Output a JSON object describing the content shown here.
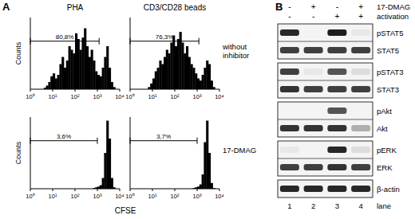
{
  "chart_data": [
    {
      "type": "histogram",
      "ylabel": "Counts",
      "log": "x",
      "tick_labels": "x",
      "color": "#000000",
      "bins": [
        1,
        1.26,
        1.58,
        2,
        2.51,
        3.16,
        3.98,
        5.01,
        6.31,
        7.94,
        10,
        12.6,
        15.8,
        20,
        25.1,
        31.6,
        39.8,
        50.1,
        63.1,
        79.4,
        100,
        126,
        158,
        200,
        251,
        316,
        398,
        501,
        631,
        794,
        1000,
        1259,
        1585,
        1995,
        2512,
        3162,
        3981,
        5012,
        6310,
        7943,
        10000
      ],
      "values": [
        0,
        0,
        0,
        0,
        0,
        0,
        2,
        5,
        10,
        18,
        22,
        15,
        20,
        35,
        45,
        30,
        40,
        60,
        55,
        50,
        78,
        70,
        55,
        72,
        85,
        60,
        45,
        55,
        40,
        25,
        20,
        18,
        30,
        45,
        60,
        30,
        10,
        3,
        0,
        0
      ],
      "xlim": [
        1,
        10000
      ],
      "ylim": [
        0,
        100
      ],
      "xticks": [
        {
          "value": 1,
          "label": "10⁰"
        },
        {
          "value": 10,
          "label": "10¹"
        },
        {
          "value": 100,
          "label": "10²"
        },
        {
          "value": 1000,
          "label": "10³"
        },
        {
          "value": 10000,
          "label": "10⁴"
        }
      ],
      "gate": {
        "label": "80,8%",
        "range": [
          1,
          1200
        ]
      }
    },
    {
      "type": "histogram",
      "log": "x",
      "tick_labels": "x",
      "color": "#000000",
      "bins": [
        1,
        1.26,
        1.58,
        2,
        2.51,
        3.16,
        3.98,
        5.01,
        6.31,
        7.94,
        10,
        12.6,
        15.8,
        20,
        25.1,
        31.6,
        39.8,
        50.1,
        63.1,
        79.4,
        100,
        126,
        158,
        200,
        251,
        316,
        398,
        501,
        631,
        794,
        1000,
        1259,
        1585,
        1995,
        2512,
        3162,
        3981,
        5012,
        6310,
        7943,
        10000
      ],
      "values": [
        0,
        0,
        0,
        0,
        0,
        0,
        0,
        0,
        3,
        8,
        15,
        25,
        30,
        40,
        35,
        45,
        55,
        50,
        65,
        75,
        60,
        70,
        80,
        65,
        50,
        60,
        45,
        35,
        30,
        22,
        15,
        12,
        20,
        30,
        40,
        35,
        12,
        3,
        0,
        0
      ],
      "xlim": [
        1,
        10000
      ],
      "ylim": [
        0,
        100
      ],
      "xticks": [
        {
          "value": 1,
          "label": "10⁰"
        },
        {
          "value": 10,
          "label": "10¹"
        },
        {
          "value": 100,
          "label": "10²"
        },
        {
          "value": 1000,
          "label": "10³"
        },
        {
          "value": 10000,
          "label": "10⁴"
        }
      ],
      "gate": {
        "label": "76,3%",
        "range": [
          1,
          1200
        ]
      }
    },
    {
      "type": "histogram",
      "ylabel": "Counts",
      "log": "x",
      "tick_labels": "x",
      "color": "#000000",
      "bins": [
        1,
        1.26,
        1.58,
        2,
        2.51,
        3.16,
        3.98,
        5.01,
        6.31,
        7.94,
        10,
        12.6,
        15.8,
        20,
        25.1,
        31.6,
        39.8,
        50.1,
        63.1,
        79.4,
        100,
        126,
        158,
        200,
        251,
        316,
        398,
        501,
        631,
        794,
        1000,
        1259,
        1585,
        1995,
        2512,
        3162,
        3981,
        5012,
        6310,
        7943,
        10000
      ],
      "values": [
        0,
        0,
        0,
        0,
        0,
        0,
        0,
        0,
        0,
        0,
        0,
        0,
        0,
        0,
        0,
        0,
        0,
        0,
        0,
        0,
        0,
        0,
        0,
        0,
        0,
        0,
        0,
        0,
        1,
        2,
        3,
        5,
        15,
        50,
        95,
        70,
        15,
        2,
        0,
        0
      ],
      "xlim": [
        1,
        10000
      ],
      "ylim": [
        0,
        100
      ],
      "xticks": [
        {
          "value": 1,
          "label": "10⁰"
        },
        {
          "value": 10,
          "label": "10¹"
        },
        {
          "value": 100,
          "label": "10²"
        },
        {
          "value": 1000,
          "label": "10³"
        },
        {
          "value": 10000,
          "label": "10⁴"
        }
      ],
      "gate": {
        "label": "3,6%",
        "range": [
          1,
          1000
        ]
      }
    },
    {
      "type": "histogram",
      "log": "x",
      "tick_labels": "x",
      "color": "#000000",
      "bins": [
        1,
        1.26,
        1.58,
        2,
        2.51,
        3.16,
        3.98,
        5.01,
        6.31,
        7.94,
        10,
        12.6,
        15.8,
        20,
        25.1,
        31.6,
        39.8,
        50.1,
        63.1,
        79.4,
        100,
        126,
        158,
        200,
        251,
        316,
        398,
        501,
        631,
        794,
        1000,
        1259,
        1585,
        1995,
        2512,
        3162,
        3981,
        5012,
        6310,
        7943,
        10000
      ],
      "values": [
        0,
        0,
        0,
        0,
        0,
        0,
        0,
        0,
        0,
        0,
        0,
        0,
        0,
        0,
        0,
        0,
        0,
        0,
        0,
        0,
        0,
        0,
        0,
        0,
        0,
        0,
        0,
        0,
        1,
        2,
        3,
        6,
        20,
        65,
        95,
        50,
        8,
        1,
        0,
        0
      ],
      "xlim": [
        1,
        10000
      ],
      "ylim": [
        0,
        100
      ],
      "xticks": [
        {
          "value": 1,
          "label": "10⁰"
        },
        {
          "value": 10,
          "label": "10¹"
        },
        {
          "value": 100,
          "label": "10²"
        },
        {
          "value": 1000,
          "label": "10³"
        },
        {
          "value": 10000,
          "label": "10⁴"
        }
      ],
      "gate": {
        "label": "3,7%",
        "range": [
          1,
          1000
        ]
      }
    }
  ],
  "panel_a": {
    "label": "A",
    "columns": [
      "PHA",
      "CD3/CD28 beads"
    ],
    "rows": [
      "without inhibitor",
      "17-DMAG"
    ],
    "xlabel": "CFSE"
  },
  "panel_b": {
    "label": "B",
    "conditions": [
      {
        "label": "17-DMAG",
        "signs": [
          "-",
          "+",
          "-",
          "+"
        ]
      },
      {
        "label": "activation",
        "signs": [
          "-",
          "-",
          "+",
          "+"
        ]
      }
    ],
    "groups": [
      {
        "blots": [
          {
            "label": "pSTAT5",
            "bands": [
              0.9,
              0,
              0.95,
              0.05
            ]
          },
          {
            "label": "STAT5",
            "bands": [
              0.8,
              0.8,
              0.8,
              0.8
            ]
          }
        ]
      },
      {
        "blots": [
          {
            "label": "pSTAT3",
            "bands": [
              0.8,
              0.05,
              0.7,
              0.1
            ]
          },
          {
            "label": "STAT3",
            "bands": [
              0.85,
              0.8,
              0.8,
              0.8
            ]
          }
        ]
      },
      {
        "blots": [
          {
            "label": "pAkt",
            "bands": [
              0,
              0,
              0.7,
              0
            ]
          },
          {
            "label": "Akt",
            "bands": [
              0.85,
              0.85,
              0.85,
              0.3
            ]
          }
        ]
      },
      {
        "blots": [
          {
            "label": "pERK",
            "bands": [
              0.05,
              0,
              0.9,
              0.1
            ]
          },
          {
            "label": "ERK",
            "bands": [
              0.8,
              0.8,
              0.85,
              0.8
            ]
          }
        ]
      },
      {
        "blots": [
          {
            "label": "β-actin",
            "bands": [
              0.9,
              0.9,
              0.9,
              0.9
            ]
          }
        ]
      }
    ],
    "lanes": [
      1,
      2,
      3,
      4
    ],
    "lane_label": "lane"
  }
}
